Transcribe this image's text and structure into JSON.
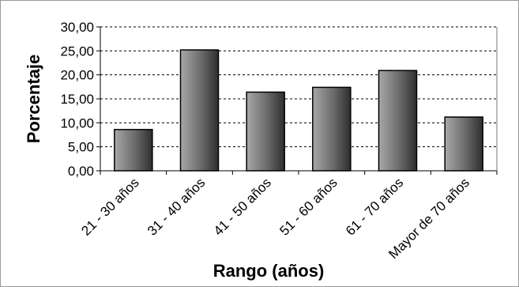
{
  "chart_data": {
    "type": "bar",
    "title": "",
    "xlabel": "Rango (años)",
    "ylabel": "Porcentaje",
    "categories": [
      "21 - 30 años",
      "31 - 40 años",
      "41 - 50 años",
      "51 - 60 años",
      "61 - 70 años",
      "Mayor de 70 años"
    ],
    "values": [
      8.6,
      25.2,
      16.4,
      17.4,
      20.9,
      11.2
    ],
    "ylim": [
      0,
      30
    ],
    "yticks": [
      "0,00",
      "5,00",
      "10,00",
      "15,00",
      "20,00",
      "25,00",
      "30,00"
    ],
    "grid": "horizontal dashed",
    "legend": "none",
    "colors": {
      "bar_light": "#9a9a9a",
      "bar_dark": "#3a3a3a",
      "grid": "#000000",
      "frame": "#9a9a9a"
    }
  }
}
